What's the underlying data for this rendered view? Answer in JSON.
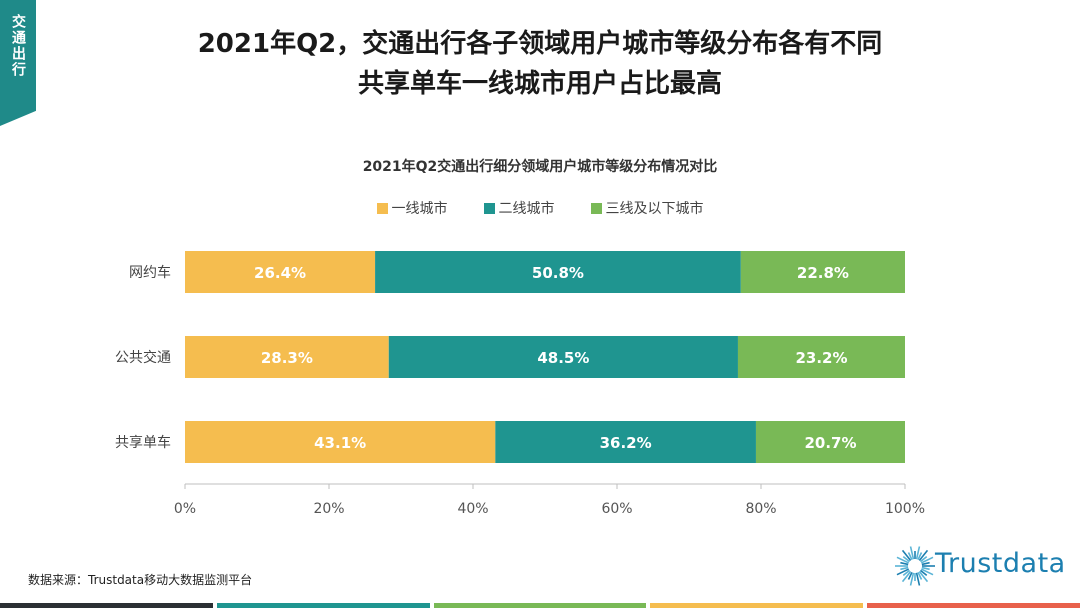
{
  "section_tab": "交通出行",
  "title_line1": "2021年Q2，交通出行各子领域用户城市等级分布各有不同",
  "title_line2": "共享单车一线城市用户占比最高",
  "source": "数据来源：Trustdata移动大数据监测平台",
  "logo_text": "Trustdata",
  "colors": {
    "tier1": "#f5bd4f",
    "tier2": "#1f9590",
    "tier3": "#79b956",
    "tab": "#1f8a89",
    "bottom": [
      "#2b2f33",
      "#1f9590",
      "#79b956",
      "#f5bd4f",
      "#e8614b"
    ]
  },
  "chart_data": {
    "type": "bar",
    "orientation": "horizontal",
    "stacked": true,
    "title": "2021年Q2交通出行细分领域用户城市等级分布情况对比",
    "categories": [
      "网约车",
      "公共交通",
      "共享单车"
    ],
    "series": [
      {
        "name": "一线城市",
        "values": [
          26.4,
          28.3,
          43.1
        ]
      },
      {
        "name": "二线城市",
        "values": [
          50.8,
          48.5,
          36.2
        ]
      },
      {
        "name": "三线及以下城市",
        "values": [
          22.8,
          23.2,
          20.7
        ]
      }
    ],
    "value_labels": [
      [
        "26.4%",
        "28.3%",
        "43.1%"
      ],
      [
        "50.8%",
        "48.5%",
        "36.2%"
      ],
      [
        "22.8%",
        "23.2%",
        "20.7%"
      ]
    ],
    "xlim": [
      0,
      100
    ],
    "xticks": [
      "0%",
      "20%",
      "40%",
      "60%",
      "80%",
      "100%"
    ],
    "legend_position": "top",
    "grid": false
  }
}
